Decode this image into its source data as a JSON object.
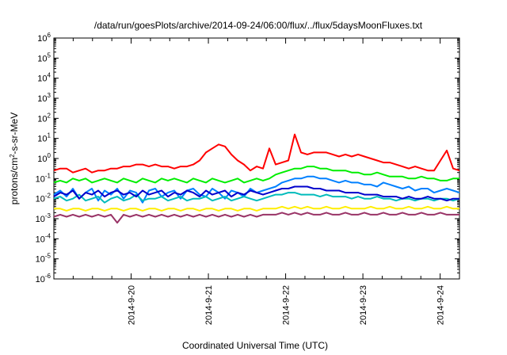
{
  "chart_data": {
    "type": "line",
    "title": "/data/run/goesPlots/archive/2014-09-24/06:00/flux/../flux/5daysMoonFluxes.txt",
    "xlabel": "Coordinated Universal Time (UTC)",
    "ylabel": "protons/cm2-s-sr-MeV",
    "ylabel_parts": [
      "protons/cm",
      "2",
      "-s-sr-MeV"
    ],
    "y_scale": "log",
    "ylim_exponents": [
      -6,
      6
    ],
    "y_tick_exponents": [
      -6,
      -5,
      -4,
      -3,
      -2,
      -1,
      0,
      1,
      2,
      3,
      4,
      5,
      6
    ],
    "y_tick_base": "10",
    "x_range_days": [
      "2014-09-19 00:00",
      "2014-09-24 06:00"
    ],
    "x_ticks": [
      {
        "label": "2014-9-20",
        "day": 1
      },
      {
        "label": "2014-9-21",
        "day": 2
      },
      {
        "label": "2014-9-22",
        "day": 3
      },
      {
        "label": "2014-9-23",
        "day": 4
      },
      {
        "label": "2014-9-24",
        "day": 5
      }
    ],
    "grid": false,
    "legend": "none",
    "series": [
      {
        "color": "#ff0000",
        "log10_values": [
          -0.6,
          -0.5,
          -0.5,
          -0.7,
          -0.6,
          -0.5,
          -0.7,
          -0.6,
          -0.6,
          -0.5,
          -0.5,
          -0.4,
          -0.4,
          -0.3,
          -0.3,
          -0.4,
          -0.3,
          -0.4,
          -0.4,
          -0.5,
          -0.4,
          -0.4,
          -0.3,
          -0.1,
          0.3,
          0.5,
          0.7,
          0.6,
          0.2,
          -0.1,
          -0.3,
          -0.6,
          -0.4,
          -0.5,
          0.5,
          -0.3,
          -0.2,
          -0.1,
          1.2,
          0.3,
          0.2,
          0.3,
          0.3,
          0.3,
          0.2,
          0.1,
          0.2,
          0.1,
          0.2,
          0.1,
          0.0,
          -0.1,
          -0.2,
          -0.2,
          -0.3,
          -0.4,
          -0.5,
          -0.4,
          -0.5,
          -0.6,
          -0.6,
          -0.1,
          0.4,
          -0.5,
          -0.6
        ]
      },
      {
        "color": "#00ee00",
        "log10_values": [
          -1.2,
          -1.1,
          -1.2,
          -1.0,
          -1.1,
          -1.0,
          -1.2,
          -1.1,
          -1.0,
          -1.1,
          -1.2,
          -1.0,
          -1.1,
          -1.2,
          -1.0,
          -1.1,
          -1.2,
          -1.0,
          -1.1,
          -1.0,
          -1.1,
          -1.2,
          -1.0,
          -1.1,
          -1.2,
          -1.0,
          -1.1,
          -1.2,
          -1.1,
          -1.0,
          -1.2,
          -1.1,
          -1.0,
          -1.1,
          -1.0,
          -0.8,
          -0.7,
          -0.6,
          -0.5,
          -0.5,
          -0.4,
          -0.4,
          -0.5,
          -0.5,
          -0.6,
          -0.6,
          -0.6,
          -0.7,
          -0.7,
          -0.8,
          -0.8,
          -0.7,
          -0.8,
          -0.9,
          -0.9,
          -0.9,
          -1.0,
          -1.0,
          -0.9,
          -1.0,
          -1.0,
          -1.1,
          -1.1,
          -1.0,
          -1.0
        ]
      },
      {
        "color": "#0080ff",
        "log10_values": [
          -1.8,
          -1.6,
          -1.9,
          -1.5,
          -2.0,
          -1.7,
          -1.5,
          -2.1,
          -1.6,
          -1.8,
          -1.5,
          -2.0,
          -1.6,
          -1.7,
          -2.2,
          -1.6,
          -1.5,
          -1.9,
          -1.7,
          -1.6,
          -2.0,
          -1.6,
          -1.5,
          -1.8,
          -1.9,
          -1.5,
          -1.7,
          -2.0,
          -1.6,
          -1.7,
          -1.9,
          -1.5,
          -1.7,
          -1.6,
          -1.5,
          -1.4,
          -1.2,
          -1.1,
          -1.0,
          -1.0,
          -0.9,
          -0.9,
          -1.0,
          -1.0,
          -1.1,
          -1.2,
          -1.1,
          -1.2,
          -1.2,
          -1.3,
          -1.3,
          -1.4,
          -1.2,
          -1.3,
          -1.4,
          -1.5,
          -1.4,
          -1.6,
          -1.5,
          -1.5,
          -1.7,
          -1.6,
          -1.5,
          -1.6,
          -1.7
        ]
      },
      {
        "color": "#00bbbb",
        "log10_values": [
          -2.0,
          -1.9,
          -2.1,
          -2.0,
          -1.8,
          -2.1,
          -2.0,
          -1.9,
          -2.2,
          -2.0,
          -1.9,
          -2.1,
          -2.0,
          -1.8,
          -2.1,
          -2.0,
          -2.0,
          -1.9,
          -2.1,
          -2.0,
          -1.9,
          -2.1,
          -2.0,
          -2.0,
          -1.9,
          -2.1,
          -2.0,
          -1.9,
          -2.1,
          -2.0,
          -1.9,
          -2.0,
          -2.1,
          -2.0,
          -1.9,
          -1.8,
          -1.8,
          -1.7,
          -1.7,
          -1.8,
          -1.8,
          -1.8,
          -1.9,
          -1.8,
          -1.9,
          -1.9,
          -1.9,
          -2.0,
          -1.9,
          -2.0,
          -2.0,
          -1.9,
          -2.0,
          -2.0,
          -2.1,
          -2.0,
          -2.0,
          -2.1,
          -2.0,
          -2.0,
          -2.1,
          -2.0,
          -2.0,
          -2.1,
          -2.0
        ]
      },
      {
        "color": "#0000cc",
        "log10_values": [
          -1.9,
          -1.7,
          -1.8,
          -1.6,
          -2.0,
          -1.7,
          -1.8,
          -1.6,
          -1.9,
          -1.7,
          -1.6,
          -1.8,
          -1.7,
          -1.9,
          -1.6,
          -1.8,
          -1.7,
          -1.6,
          -1.9,
          -1.7,
          -1.8,
          -1.6,
          -1.7,
          -1.9,
          -1.6,
          -1.8,
          -1.7,
          -1.6,
          -1.9,
          -1.7,
          -1.8,
          -1.6,
          -1.7,
          -1.8,
          -1.7,
          -1.6,
          -1.5,
          -1.5,
          -1.4,
          -1.4,
          -1.4,
          -1.5,
          -1.5,
          -1.6,
          -1.6,
          -1.6,
          -1.7,
          -1.7,
          -1.7,
          -1.8,
          -1.8,
          -1.8,
          -1.9,
          -1.9,
          -1.9,
          -2.0,
          -1.9,
          -2.0,
          -2.0,
          -1.9,
          -2.0,
          -2.0,
          -2.1,
          -2.0,
          -2.0
        ]
      },
      {
        "color": "#ffee00",
        "log10_values": [
          -2.5,
          -2.5,
          -2.6,
          -2.5,
          -2.5,
          -2.6,
          -2.5,
          -2.5,
          -2.6,
          -2.5,
          -2.5,
          -2.6,
          -2.5,
          -2.5,
          -2.6,
          -2.5,
          -2.5,
          -2.6,
          -2.5,
          -2.5,
          -2.6,
          -2.5,
          -2.5,
          -2.6,
          -2.5,
          -2.5,
          -2.6,
          -2.5,
          -2.5,
          -2.6,
          -2.5,
          -2.5,
          -2.6,
          -2.5,
          -2.5,
          -2.5,
          -2.4,
          -2.5,
          -2.4,
          -2.5,
          -2.4,
          -2.5,
          -2.5,
          -2.4,
          -2.5,
          -2.5,
          -2.4,
          -2.5,
          -2.5,
          -2.5,
          -2.4,
          -2.5,
          -2.5,
          -2.4,
          -2.5,
          -2.5,
          -2.4,
          -2.5,
          -2.5,
          -2.4,
          -2.5,
          -2.5,
          -2.4,
          -2.5,
          -2.5
        ]
      },
      {
        "color": "#993366",
        "log10_values": [
          -2.9,
          -2.8,
          -2.9,
          -2.8,
          -2.9,
          -2.8,
          -2.9,
          -2.8,
          -2.9,
          -2.8,
          -3.2,
          -2.8,
          -2.9,
          -2.8,
          -2.9,
          -2.8,
          -2.9,
          -2.8,
          -2.9,
          -2.8,
          -2.9,
          -2.8,
          -2.9,
          -2.8,
          -2.9,
          -2.8,
          -2.9,
          -2.8,
          -2.9,
          -2.8,
          -2.9,
          -2.8,
          -2.9,
          -2.8,
          -2.8,
          -2.8,
          -2.7,
          -2.8,
          -2.7,
          -2.8,
          -2.7,
          -2.8,
          -2.8,
          -2.7,
          -2.8,
          -2.8,
          -2.7,
          -2.8,
          -2.8,
          -2.7,
          -2.8,
          -2.8,
          -2.7,
          -2.8,
          -2.8,
          -2.7,
          -2.8,
          -2.8,
          -2.7,
          -2.8,
          -2.8,
          -2.7,
          -2.8,
          -2.8,
          -2.8
        ]
      }
    ]
  }
}
